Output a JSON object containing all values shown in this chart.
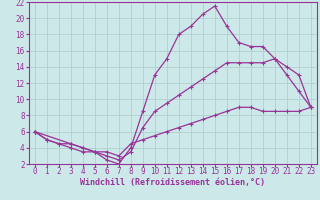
{
  "xlabel": "Windchill (Refroidissement éolien,°C)",
  "bg_color": "#cce8e8",
  "grid_color": "#aacccc",
  "line_color": "#993399",
  "spine_color": "#993399",
  "xlim": [
    -0.5,
    23.5
  ],
  "ylim": [
    2,
    22
  ],
  "xticks": [
    0,
    1,
    2,
    3,
    4,
    5,
    6,
    7,
    8,
    9,
    10,
    11,
    12,
    13,
    14,
    15,
    16,
    17,
    18,
    19,
    20,
    21,
    22,
    23
  ],
  "yticks": [
    2,
    4,
    6,
    8,
    10,
    12,
    14,
    16,
    18,
    20,
    22
  ],
  "line1_x": [
    0,
    1,
    2,
    3,
    4,
    5,
    6,
    7,
    8,
    9,
    10,
    11,
    12,
    13,
    14,
    15,
    16,
    17,
    18,
    19,
    20,
    21,
    22,
    23
  ],
  "line1_y": [
    6.0,
    5.0,
    4.5,
    4.0,
    3.5,
    3.5,
    2.5,
    2.0,
    4.0,
    8.5,
    13.0,
    15.0,
    18.0,
    19.0,
    20.5,
    21.5,
    19.0,
    17.0,
    16.5,
    16.5,
    15.0,
    13.0,
    11.0,
    9.0
  ],
  "line2_x": [
    0,
    3,
    4,
    5,
    6,
    7,
    8,
    9,
    10,
    11,
    12,
    13,
    14,
    15,
    16,
    17,
    18,
    19,
    20,
    21,
    22,
    23
  ],
  "line2_y": [
    6.0,
    4.5,
    4.0,
    3.5,
    3.0,
    2.5,
    3.5,
    6.5,
    8.5,
    9.5,
    10.5,
    11.5,
    12.5,
    13.5,
    14.5,
    14.5,
    14.5,
    14.5,
    15.0,
    14.0,
    13.0,
    9.0
  ],
  "line3_x": [
    0,
    1,
    2,
    3,
    4,
    5,
    6,
    7,
    8,
    9,
    10,
    11,
    12,
    13,
    14,
    15,
    16,
    17,
    18,
    19,
    20,
    21,
    22,
    23
  ],
  "line3_y": [
    6.0,
    5.0,
    4.5,
    4.5,
    4.0,
    3.5,
    3.5,
    3.0,
    4.5,
    5.0,
    5.5,
    6.0,
    6.5,
    7.0,
    7.5,
    8.0,
    8.5,
    9.0,
    9.0,
    8.5,
    8.5,
    8.5,
    8.5,
    9.0
  ],
  "tick_fontsize": 5.5,
  "xlabel_fontsize": 6.0,
  "lw": 0.9,
  "marker_size": 3.5,
  "marker_lw": 0.8
}
